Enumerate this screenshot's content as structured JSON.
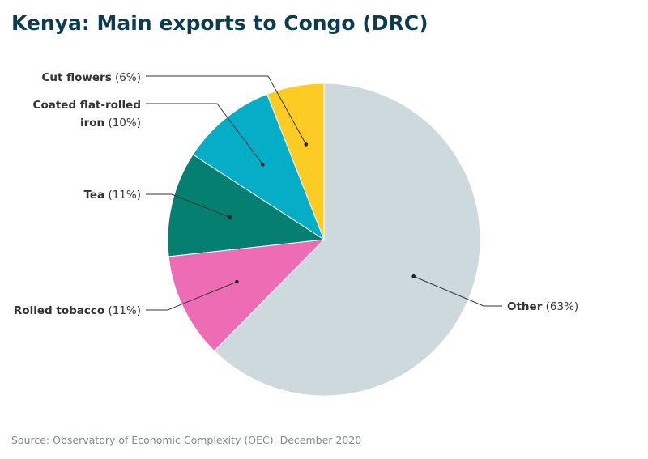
{
  "title": "Kenya: Main exports to Congo (DRC)",
  "source": "Source: Observatory of Economic Complexity (OEC), December 2020",
  "chart_data": {
    "type": "pie",
    "title": "Kenya: Main exports to Congo (DRC)",
    "unit": "%",
    "start": "12 o'clock, counterclockwise",
    "slices": [
      {
        "label": "Cut flowers",
        "value": 6,
        "pct_text": "(6%)",
        "color": "#fccc24"
      },
      {
        "label": "Coated flat-rolled iron",
        "label_lines": [
          "Coated flat-rolled",
          "iron"
        ],
        "value": 10,
        "pct_text": "(10%)",
        "color": "#05adc6"
      },
      {
        "label": "Tea",
        "value": 11,
        "pct_text": "(11%)",
        "color": "#057f6f"
      },
      {
        "label": "Rolled tobacco",
        "value": 11,
        "pct_text": "(11%)",
        "color": "#ee6cb3"
      },
      {
        "label": "Other",
        "value": 63,
        "pct_text": "(63%)",
        "color": "#cdd9dc"
      }
    ]
  }
}
